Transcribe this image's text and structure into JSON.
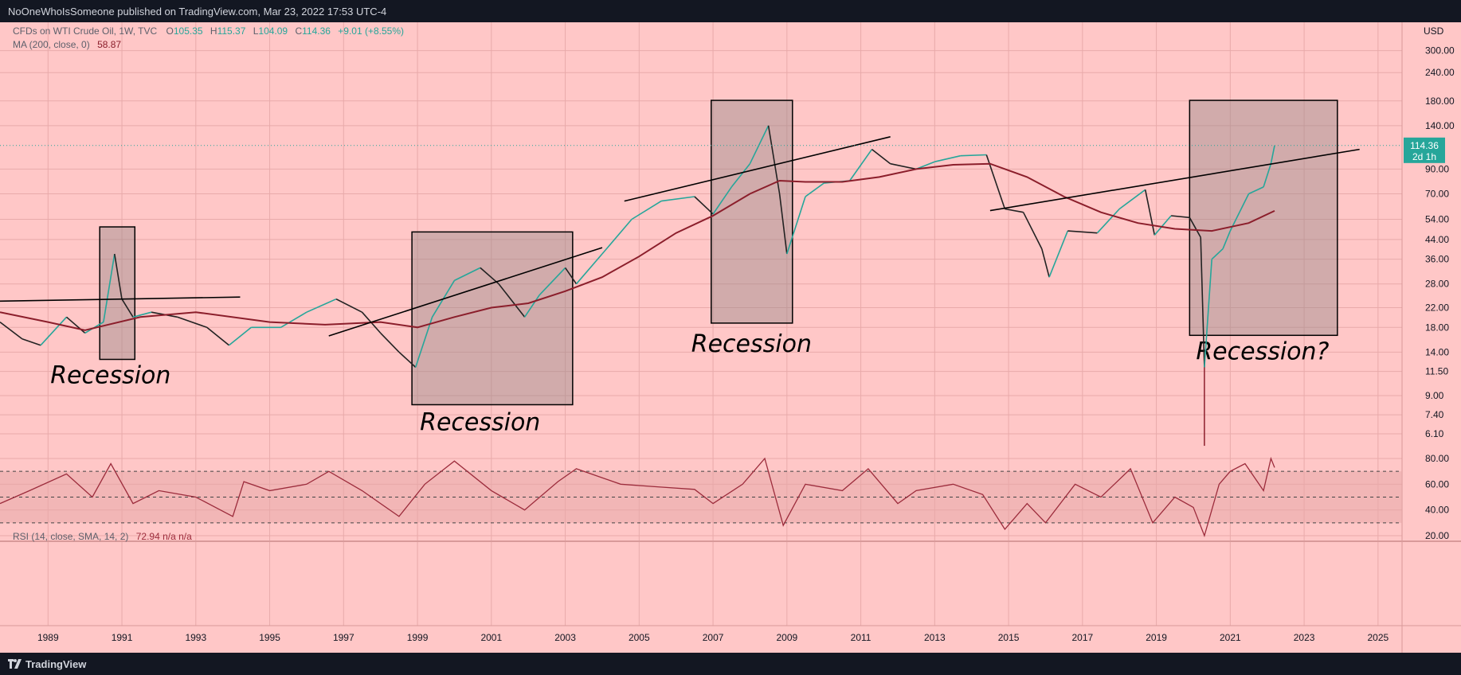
{
  "header": {
    "publisher": "NoOneWhoIsSomeone published on TradingView.com, Mar 23, 2022 17:53 UTC-4"
  },
  "footer": {
    "brand": "TradingView"
  },
  "colors": {
    "panel_bg": "#ffc7c7",
    "ma_line": "#8b1e2b",
    "rsi_line": "#9c2c3c",
    "candle_up": "#26a69a",
    "candle_down": "#222222",
    "price_tag": "#26a69a",
    "box_fill": "#9a8a8a",
    "rsi_band": "#e8a8a8"
  },
  "chart_data": {
    "type": "line",
    "symbol_label": "CFDs on WTI Crude Oil, 1W, TVC",
    "ohlc": {
      "o_label": "O",
      "o": "105.35",
      "h_label": "H",
      "h": "115.37",
      "l_label": "L",
      "l": "104.09",
      "c_label": "C",
      "c": "114.36",
      "change": "+9.01 (+8.55%)"
    },
    "ma_label": "MA (200, close, 0)",
    "ma_value": "58.87",
    "rsi_label": "RSI (14, close, SMA, 14, 2)",
    "rsi_values": "72.94  n/a  n/a",
    "currency": "USD",
    "y_scale": "log",
    "ylim": [
      5.3,
      300
    ],
    "y_ticks": [
      "300.00",
      "240.00",
      "180.00",
      "140.00",
      "90.00",
      "70.00",
      "54.00",
      "44.00",
      "36.00",
      "28.00",
      "22.00",
      "18.00",
      "14.00",
      "11.50",
      "9.00",
      "7.40",
      "6.10"
    ],
    "rsi_ticks": [
      "80.00",
      "60.00",
      "40.00",
      "20.00"
    ],
    "rsi_levels": [
      70,
      50,
      30
    ],
    "x_ticks": [
      "1989",
      "1991",
      "1993",
      "1995",
      "1997",
      "1999",
      "2001",
      "2003",
      "2005",
      "2007",
      "2009",
      "2011",
      "2013",
      "2015",
      "2017",
      "2019",
      "2021",
      "2023",
      "2025"
    ],
    "last_price": {
      "value": "114.36",
      "countdown": "2d 1h"
    },
    "price_series": {
      "name": "",
      "x": [
        1987.7,
        1988.3,
        1988.8,
        1989.5,
        1990.0,
        1990.5,
        1990.8,
        1991.0,
        1991.3,
        1991.8,
        1992.5,
        1993.3,
        1993.9,
        1994.5,
        1995.3,
        1996.0,
        1996.8,
        1997.5,
        1998.0,
        1998.5,
        1998.95,
        1999.4,
        2000.0,
        2000.7,
        2001.2,
        2001.9,
        2002.3,
        2003.0,
        2003.3,
        2004.0,
        2004.8,
        2005.6,
        2006.5,
        2007.0,
        2007.5,
        2008.0,
        2008.5,
        2008.8,
        2009.0,
        2009.5,
        2010.0,
        2010.7,
        2011.3,
        2011.8,
        2012.5,
        2013.0,
        2013.7,
        2014.4,
        2014.9,
        2015.4,
        2015.9,
        2016.1,
        2016.6,
        2017.4,
        2018.0,
        2018.7,
        2018.95,
        2019.4,
        2019.9,
        2020.2,
        2020.3,
        2020.5,
        2020.8,
        2021.0,
        2021.5,
        2021.9,
        2022.1,
        2022.2
      ],
      "values": [
        19,
        16,
        15,
        20,
        17,
        19,
        38,
        24,
        20,
        21,
        20,
        18,
        15,
        18,
        18,
        21,
        24,
        21,
        17,
        14,
        12,
        20,
        29,
        33,
        28,
        20,
        25,
        33,
        28,
        38,
        54,
        65,
        68,
        57,
        75,
        95,
        140,
        70,
        38,
        68,
        78,
        80,
        110,
        95,
        90,
        97,
        103,
        104,
        60,
        58,
        40,
        30,
        48,
        47,
        60,
        73,
        46,
        56,
        55,
        45,
        12,
        36,
        40,
        48,
        70,
        75,
        95,
        114.36
      ]
    },
    "ma_series": {
      "name": "",
      "x": [
        1987.7,
        1989.0,
        1990.0,
        1991.5,
        1993.0,
        1995.0,
        1996.5,
        1998.0,
        1999.0,
        2000.0,
        2001.0,
        2002.0,
        2003.0,
        2004.0,
        2005.0,
        2006.0,
        2007.0,
        2008.0,
        2008.8,
        2009.5,
        2010.5,
        2011.5,
        2012.5,
        2013.5,
        2014.5,
        2015.5,
        2016.5,
        2017.5,
        2018.5,
        2019.5,
        2020.5,
        2021.5,
        2022.2
      ],
      "values": [
        21,
        19,
        17.5,
        20,
        21,
        19,
        18.5,
        19,
        18,
        20,
        22,
        23,
        26,
        30,
        37,
        47,
        56,
        70,
        80,
        79,
        79,
        83,
        90,
        94,
        95,
        83,
        68,
        58,
        52,
        49,
        48,
        52,
        58.87
      ]
    },
    "rsi_series": {
      "name": "",
      "x": [
        1987.7,
        1988.5,
        1989.5,
        1990.2,
        1990.7,
        1991.3,
        1992.0,
        1993.0,
        1994.0,
        1994.3,
        1995.0,
        1996.0,
        1996.6,
        1997.5,
        1998.5,
        1999.2,
        2000.0,
        2001.0,
        2001.9,
        2002.8,
        2003.3,
        2004.5,
        2005.5,
        2006.5,
        2007.0,
        2007.8,
        2008.4,
        2008.9,
        2009.5,
        2010.5,
        2011.2,
        2012.0,
        2012.5,
        2013.5,
        2014.3,
        2014.9,
        2015.5,
        2016.0,
        2016.8,
        2017.5,
        2018.3,
        2018.9,
        2019.5,
        2020.0,
        2020.3,
        2020.7,
        2021.0,
        2021.4,
        2021.9,
        2022.1,
        2022.2
      ],
      "values": [
        45,
        55,
        68,
        50,
        76,
        45,
        55,
        50,
        35,
        62,
        55,
        60,
        70,
        55,
        35,
        60,
        78,
        55,
        40,
        62,
        72,
        60,
        58,
        56,
        45,
        60,
        80,
        28,
        60,
        55,
        72,
        45,
        55,
        60,
        52,
        25,
        45,
        30,
        60,
        50,
        72,
        30,
        50,
        42,
        20,
        60,
        70,
        76,
        55,
        80,
        72.94
      ]
    },
    "trendlines": [
      {
        "x": [
          1987.7,
          1994.2
        ],
        "values": [
          23.5,
          24.5
        ]
      },
      {
        "x": [
          1996.6,
          2004.0
        ],
        "values": [
          16.5,
          40.5
        ]
      },
      {
        "x": [
          2004.6,
          2011.8
        ],
        "values": [
          65,
          125
        ]
      },
      {
        "x": [
          2014.5,
          2024.5
        ],
        "values": [
          59,
          110
        ]
      }
    ],
    "regions": [
      {
        "label": "Recession",
        "x": [
          1990.4,
          1991.35
        ],
        "values": [
          13.0,
          50.0
        ]
      },
      {
        "label": "Recession",
        "x": [
          1998.85,
          2003.2
        ],
        "values": [
          8.2,
          47.5
        ]
      },
      {
        "label": "Recession",
        "x": [
          2006.95,
          2009.15
        ],
        "values": [
          18.8,
          181.0
        ]
      },
      {
        "label": "Recession?",
        "x": [
          2019.9,
          2023.9
        ],
        "values": [
          16.6,
          181.0
        ]
      }
    ]
  }
}
